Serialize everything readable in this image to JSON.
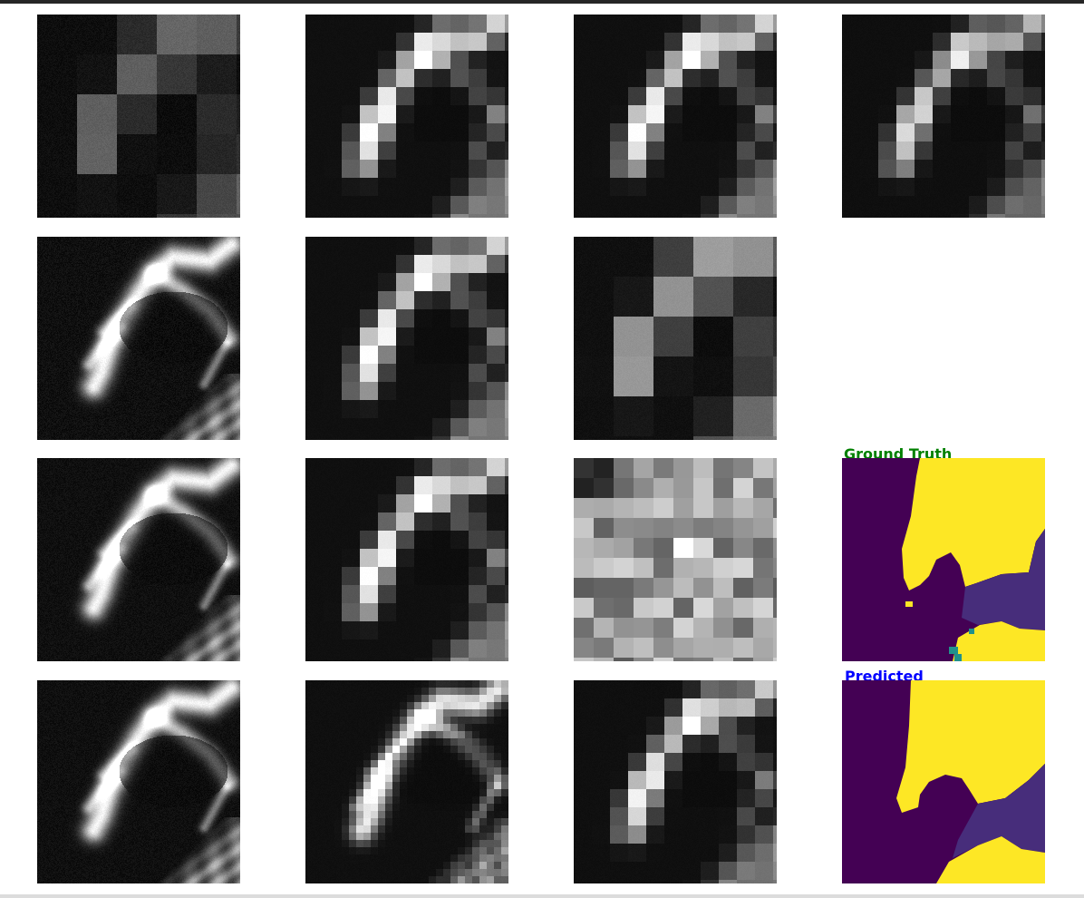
{
  "figure": {
    "rows": 4,
    "cols": 4,
    "panels": [
      {
        "id": "r1c1",
        "kind": "satellite-band",
        "coarseness": 11,
        "brightness": 0.62,
        "noise": 0.18
      },
      {
        "id": "r1c2",
        "kind": "satellite-band",
        "coarseness": 5,
        "brightness": 1.0,
        "noise": 0.05
      },
      {
        "id": "r1c3",
        "kind": "satellite-band",
        "coarseness": 5,
        "brightness": 1.0,
        "noise": 0.05
      },
      {
        "id": "r1c4",
        "kind": "satellite-band",
        "coarseness": 5,
        "brightness": 0.85,
        "noise": 0.05
      },
      {
        "id": "r2c1",
        "kind": "satellite-band",
        "coarseness": 1,
        "brightness": 0.95,
        "noise": 0.12
      },
      {
        "id": "r2c2",
        "kind": "satellite-band",
        "coarseness": 5,
        "brightness": 1.0,
        "noise": 0.05
      },
      {
        "id": "r2c3",
        "kind": "satellite-band",
        "coarseness": 11,
        "brightness": 1.0,
        "noise": 0.1
      },
      {
        "id": "r2c4",
        "kind": "empty"
      },
      {
        "id": "r3c1",
        "kind": "satellite-band",
        "coarseness": 1,
        "brightness": 0.95,
        "noise": 0.1
      },
      {
        "id": "r3c2",
        "kind": "satellite-band",
        "coarseness": 5,
        "brightness": 1.0,
        "noise": 0.05
      },
      {
        "id": "r3c3",
        "kind": "noise-band",
        "coarseness": 11
      },
      {
        "id": "r3c4",
        "kind": "segmentation-mask",
        "variant": "ground-truth"
      },
      {
        "id": "r4c1",
        "kind": "satellite-band",
        "coarseness": 1,
        "brightness": 0.95,
        "noise": 0.1
      },
      {
        "id": "r4c2",
        "kind": "satellite-band",
        "coarseness": 2,
        "brightness": 0.95,
        "noise": 0.06
      },
      {
        "id": "r4c3",
        "kind": "satellite-band",
        "coarseness": 5,
        "brightness": 0.95,
        "noise": 0.05
      },
      {
        "id": "r4c4",
        "kind": "segmentation-mask",
        "variant": "predicted"
      }
    ]
  },
  "labels": {
    "ground_truth": "Ground Truth",
    "predicted": "Predicted"
  },
  "colors": {
    "ground_truth_label": "#008000",
    "predicted_label": "#0000ff",
    "mask_class_0": "#440154",
    "mask_class_1": "#472d7b",
    "mask_class_2": "#21918c",
    "mask_class_3": "#fde725"
  }
}
